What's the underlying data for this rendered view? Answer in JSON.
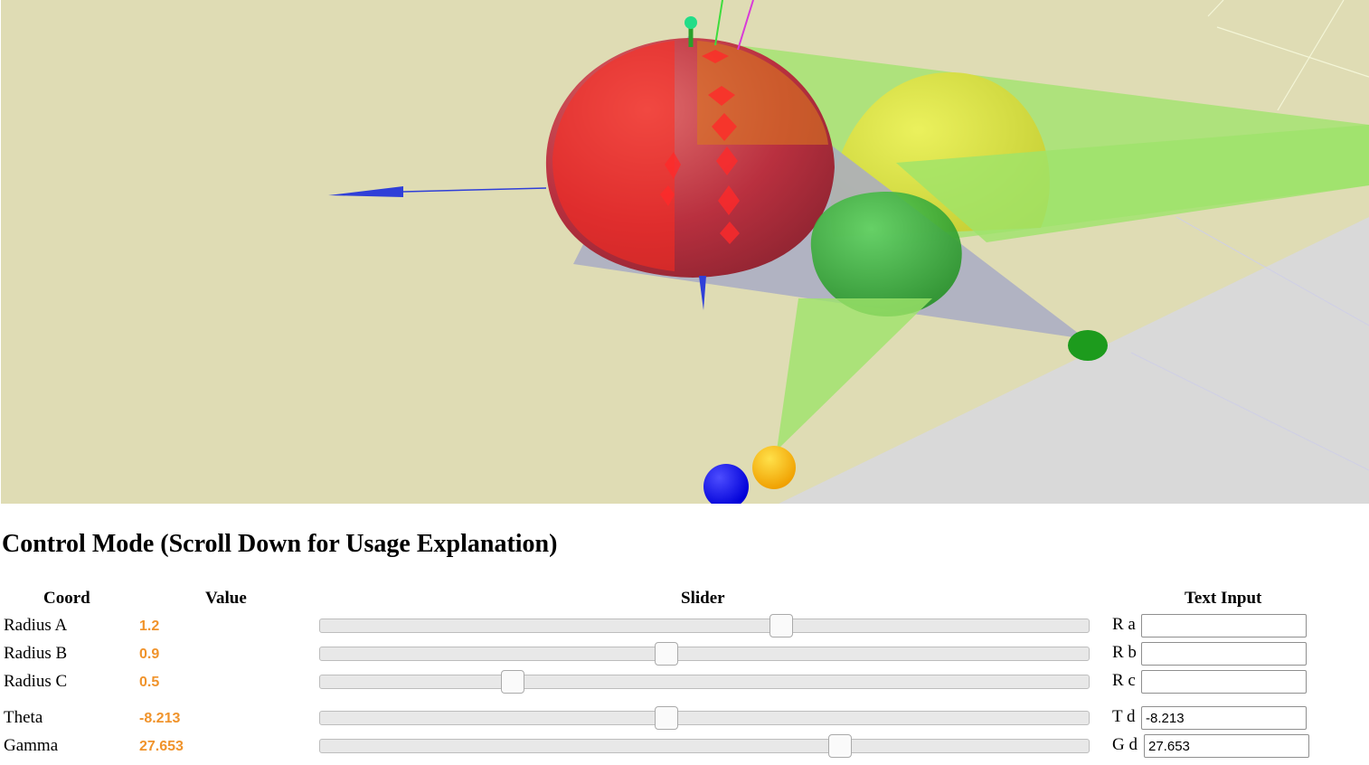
{
  "viewport": {
    "background": "#dfdcb4",
    "floor_color": "#d9d9d9",
    "spheres": [
      {
        "name": "red-sphere",
        "color": "#c83a3a"
      },
      {
        "name": "yellow-sphere",
        "color": "#d8e43a"
      },
      {
        "name": "green-sphere",
        "color": "#35b135"
      },
      {
        "name": "blue-ball",
        "color": "#1a1aff"
      },
      {
        "name": "orange-ball",
        "color": "#f5b800"
      },
      {
        "name": "green-ellipsoid",
        "color": "#1d9b1d"
      }
    ],
    "cone_color": "#7fe85a",
    "axis_color": "#2f3fd8"
  },
  "heading": "Control Mode (Scroll Down for Usage Explanation)",
  "columns": {
    "coord": "Coord",
    "value": "Value",
    "slider": "Slider",
    "text_input": "Text Input"
  },
  "rows": [
    {
      "coord": "Radius A",
      "value": "1.2",
      "slider_fraction": 0.6,
      "input_label": "R a",
      "input_value": ""
    },
    {
      "coord": "Radius B",
      "value": "0.9",
      "slider_fraction": 0.45,
      "input_label": "R b",
      "input_value": ""
    },
    {
      "coord": "Radius C",
      "value": "0.5",
      "slider_fraction": 0.25,
      "input_label": "R c",
      "input_value": ""
    },
    {
      "coord": "Theta",
      "value": "-8.213",
      "slider_fraction": 0.45,
      "input_label": "T d",
      "input_value": "-8.213"
    },
    {
      "coord": "Gamma",
      "value": "27.653",
      "slider_fraction": 0.676,
      "input_label": "G d",
      "input_value": "27.653"
    }
  ]
}
